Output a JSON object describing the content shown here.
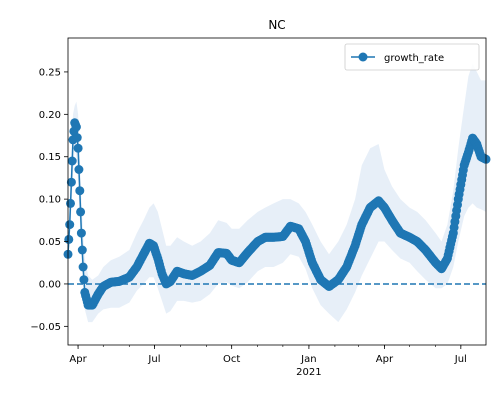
{
  "chart_data": {
    "type": "line",
    "title": "NC",
    "xlabel": "",
    "ylabel": "",
    "x_range": [
      "2020-03-20",
      "2021-07-31"
    ],
    "ylim": [
      -0.072,
      0.29
    ],
    "y_ticks": [
      -0.05,
      0.0,
      0.05,
      0.1,
      0.15,
      0.2,
      0.25
    ],
    "y_tick_labels": [
      "−0.05",
      "0.00",
      "0.05",
      "0.10",
      "0.15",
      "0.20",
      "0.25"
    ],
    "x_ticks": [
      {
        "date": "2020-04-01",
        "label": "Apr"
      },
      {
        "date": "2020-07-01",
        "label": "Jul"
      },
      {
        "date": "2020-10-01",
        "label": "Oct"
      },
      {
        "date": "2021-01-01",
        "label": "Jan"
      },
      {
        "date": "2021-04-01",
        "label": "Apr"
      },
      {
        "date": "2021-07-01",
        "label": "Jul"
      }
    ],
    "x_year_label": {
      "date": "2021-01-01",
      "label": "2021"
    },
    "legend": {
      "position": "top-right",
      "entries": [
        "growth_rate"
      ]
    },
    "grid": false,
    "reference_line": {
      "y": 0.0,
      "style": "dashed",
      "color": "#1f77b4"
    },
    "colors": {
      "series": "#1f77b4",
      "band": "#dfeaf5"
    },
    "series": [
      {
        "name": "growth_rate",
        "marker": "circle",
        "x": [
          "2020-03-20",
          "2020-03-22",
          "2020-03-24",
          "2020-03-26",
          "2020-03-28",
          "2020-03-30",
          "2020-04-01",
          "2020-04-03",
          "2020-04-05",
          "2020-04-07",
          "2020-04-09",
          "2020-04-13",
          "2020-04-18",
          "2020-04-25",
          "2020-05-01",
          "2020-05-10",
          "2020-05-20",
          "2020-06-01",
          "2020-06-10",
          "2020-06-18",
          "2020-06-25",
          "2020-06-30",
          "2020-07-05",
          "2020-07-10",
          "2020-07-15",
          "2020-07-20",
          "2020-07-28",
          "2020-08-05",
          "2020-08-15",
          "2020-08-25",
          "2020-09-05",
          "2020-09-15",
          "2020-09-25",
          "2020-10-01",
          "2020-10-10",
          "2020-10-20",
          "2020-11-01",
          "2020-11-10",
          "2020-11-20",
          "2020-12-01",
          "2020-12-10",
          "2020-12-20",
          "2020-12-28",
          "2021-01-05",
          "2021-01-15",
          "2021-01-25",
          "2021-02-05",
          "2021-02-15",
          "2021-02-25",
          "2021-03-05",
          "2021-03-15",
          "2021-03-25",
          "2021-04-01",
          "2021-04-10",
          "2021-04-20",
          "2021-05-01",
          "2021-05-10",
          "2021-05-20",
          "2021-06-01",
          "2021-06-08",
          "2021-06-15",
          "2021-06-22",
          "2021-06-28",
          "2021-07-05",
          "2021-07-10",
          "2021-07-15",
          "2021-07-20",
          "2021-07-25",
          "2021-07-31"
        ],
        "y": [
          0.035,
          0.07,
          0.12,
          0.17,
          0.19,
          0.185,
          0.16,
          0.11,
          0.06,
          0.02,
          -0.01,
          -0.025,
          -0.025,
          -0.012,
          -0.003,
          0.002,
          0.003,
          0.008,
          0.02,
          0.035,
          0.048,
          0.045,
          0.03,
          0.012,
          0.0,
          0.003,
          0.015,
          0.012,
          0.01,
          0.015,
          0.022,
          0.037,
          0.036,
          0.028,
          0.025,
          0.037,
          0.05,
          0.055,
          0.055,
          0.056,
          0.068,
          0.065,
          0.05,
          0.025,
          0.005,
          -0.003,
          0.005,
          0.02,
          0.045,
          0.07,
          0.09,
          0.098,
          0.09,
          0.075,
          0.06,
          0.055,
          0.05,
          0.04,
          0.025,
          0.018,
          0.03,
          0.06,
          0.1,
          0.14,
          0.155,
          0.172,
          0.165,
          0.15,
          0.147
        ],
        "lower": [
          0.03,
          0.05,
          0.09,
          0.13,
          0.16,
          0.15,
          0.12,
          0.08,
          0.03,
          -0.005,
          -0.03,
          -0.045,
          -0.045,
          -0.035,
          -0.03,
          -0.028,
          -0.028,
          -0.022,
          -0.008,
          0.0,
          0.008,
          0.008,
          -0.005,
          -0.02,
          -0.035,
          -0.032,
          -0.02,
          -0.02,
          -0.022,
          -0.02,
          -0.012,
          0.0,
          0.002,
          -0.002,
          -0.005,
          0.002,
          0.015,
          0.02,
          0.02,
          0.025,
          0.035,
          0.032,
          0.018,
          -0.005,
          -0.025,
          -0.035,
          -0.045,
          -0.03,
          -0.01,
          0.01,
          0.03,
          0.05,
          0.05,
          0.04,
          0.03,
          0.025,
          0.015,
          0.005,
          -0.005,
          -0.005,
          0.0,
          0.02,
          0.05,
          0.08,
          0.09,
          0.095,
          0.09,
          0.088,
          0.085
        ],
        "upper": [
          0.045,
          0.1,
          0.15,
          0.2,
          0.21,
          0.215,
          0.2,
          0.15,
          0.1,
          0.06,
          0.03,
          0.01,
          0.005,
          0.01,
          0.02,
          0.028,
          0.032,
          0.04,
          0.06,
          0.075,
          0.09,
          0.095,
          0.085,
          0.065,
          0.045,
          0.045,
          0.055,
          0.05,
          0.045,
          0.05,
          0.06,
          0.075,
          0.072,
          0.065,
          0.065,
          0.075,
          0.085,
          0.09,
          0.095,
          0.1,
          0.1,
          0.095,
          0.085,
          0.07,
          0.05,
          0.035,
          0.05,
          0.07,
          0.1,
          0.14,
          0.16,
          0.165,
          0.135,
          0.115,
          0.1,
          0.09,
          0.085,
          0.075,
          0.06,
          0.05,
          0.07,
          0.11,
          0.16,
          0.21,
          0.245,
          0.26,
          0.25,
          0.24,
          0.24
        ]
      }
    ]
  }
}
